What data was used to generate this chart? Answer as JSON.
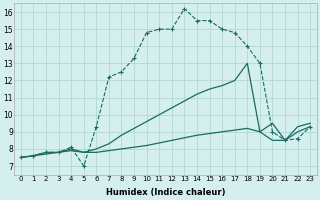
{
  "bg_color": "#d4efed",
  "grid_color": "#b8dbd9",
  "line_color": "#1a6b60",
  "xlabel": "Humidex (Indice chaleur)",
  "xlim": [
    -0.5,
    23.5
  ],
  "ylim": [
    6.5,
    16.5
  ],
  "xticks": [
    0,
    1,
    2,
    3,
    4,
    5,
    6,
    7,
    8,
    9,
    10,
    11,
    12,
    13,
    14,
    15,
    16,
    17,
    18,
    19,
    20,
    21,
    22,
    23
  ],
  "yticks": [
    7,
    8,
    9,
    10,
    11,
    12,
    13,
    14,
    15,
    16
  ],
  "series": [
    {
      "x": [
        0,
        1,
        2,
        3,
        4,
        5,
        6,
        7,
        8,
        9,
        10,
        11,
        12,
        13,
        14,
        15,
        16,
        17,
        18,
        19,
        20,
        21,
        22,
        23
      ],
      "y": [
        7.5,
        7.6,
        7.8,
        7.8,
        8.1,
        7.0,
        9.3,
        12.2,
        12.5,
        13.3,
        14.8,
        15.0,
        15.0,
        16.2,
        15.5,
        15.5,
        15.0,
        14.8,
        14.0,
        13.0,
        9.0,
        8.5,
        8.6,
        9.3
      ],
      "marker": true,
      "linestyle": "--"
    },
    {
      "x": [
        0,
        1,
        2,
        3,
        4,
        5,
        6,
        7,
        8,
        9,
        10,
        11,
        12,
        13,
        14,
        15,
        16,
        17,
        18,
        19,
        20,
        21,
        22,
        23
      ],
      "y": [
        7.5,
        7.6,
        7.8,
        7.8,
        8.0,
        7.8,
        8.0,
        8.3,
        8.8,
        9.2,
        9.6,
        10.0,
        10.4,
        10.8,
        11.2,
        11.5,
        11.7,
        12.0,
        13.0,
        9.0,
        9.5,
        8.5,
        9.3,
        9.5
      ],
      "marker": false,
      "linestyle": "-"
    },
    {
      "x": [
        0,
        1,
        2,
        3,
        4,
        5,
        6,
        7,
        8,
        9,
        10,
        11,
        12,
        13,
        14,
        15,
        16,
        17,
        18,
        19,
        20,
        21,
        22,
        23
      ],
      "y": [
        7.5,
        7.6,
        7.7,
        7.8,
        7.9,
        7.8,
        7.8,
        7.9,
        8.0,
        8.1,
        8.2,
        8.35,
        8.5,
        8.65,
        8.8,
        8.9,
        9.0,
        9.1,
        9.2,
        9.0,
        8.5,
        8.5,
        9.0,
        9.3
      ],
      "marker": false,
      "linestyle": "-"
    }
  ]
}
